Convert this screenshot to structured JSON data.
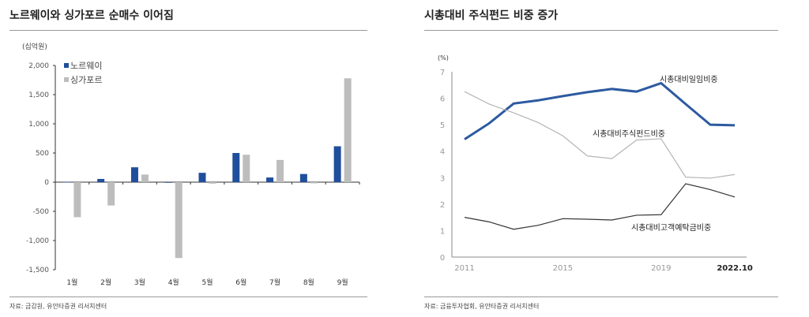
{
  "left": {
    "title": "노르웨이와 싱가포르 순매수 이어짐",
    "source": "자료: 금감원, 유안타증권 리서치센터"
  },
  "right": {
    "title": "시총대비 주식펀드 비중 증가",
    "source": "자료: 금융투자협회, 유안타증권 리서치센터"
  },
  "chart_data": [
    {
      "type": "bar",
      "unit_label": "(십억원)",
      "categories": [
        "1월",
        "2월",
        "3월",
        "4월",
        "5월",
        "6월",
        "7월",
        "8월",
        "9월"
      ],
      "yticks": [
        "2,000",
        "1,500",
        "1,000",
        "500",
        "0",
        "-500",
        "-1,000",
        "-1,500"
      ],
      "ylim": [
        -1500,
        2000
      ],
      "legend": "top-left",
      "series": [
        {
          "name": "노르웨이",
          "color": "#1f4e9c",
          "values": [
            5,
            55,
            255,
            0,
            160,
            500,
            80,
            140,
            615
          ]
        },
        {
          "name": "싱가포르",
          "color": "#bdbdbd",
          "values": [
            -600,
            -400,
            130,
            -1300,
            -25,
            470,
            380,
            -20,
            1780
          ]
        }
      ]
    },
    {
      "type": "line",
      "unit_label": "(%)",
      "x": [
        2011,
        2012,
        2013,
        2014,
        2015,
        2016,
        2017,
        2018,
        2019,
        2020,
        2021,
        2022
      ],
      "xticks": [
        "2011",
        "2015",
        "2019",
        "2022.10"
      ],
      "yticks": [
        "0",
        "1",
        "2",
        "3",
        "4",
        "5",
        "6",
        "7"
      ],
      "ylim": [
        0,
        7
      ],
      "series": [
        {
          "name": "시총대비일임비중",
          "color": "#2d5aa0",
          "values": [
            4.45,
            5.05,
            5.8,
            5.92,
            6.08,
            6.23,
            6.35,
            6.25,
            6.57,
            5.78,
            5.0,
            4.98
          ]
        },
        {
          "name": "시총대비주식펀드비중",
          "color": "#b5b5b5",
          "values": [
            6.25,
            5.78,
            5.45,
            5.08,
            4.58,
            3.82,
            3.72,
            4.42,
            4.47,
            3.02,
            2.98,
            3.12
          ]
        },
        {
          "name": "시총대비고객예탁금비중",
          "color": "#333333",
          "values": [
            1.5,
            1.33,
            1.05,
            1.2,
            1.45,
            1.43,
            1.4,
            1.58,
            1.6,
            2.77,
            2.55,
            2.27
          ]
        }
      ]
    }
  ]
}
